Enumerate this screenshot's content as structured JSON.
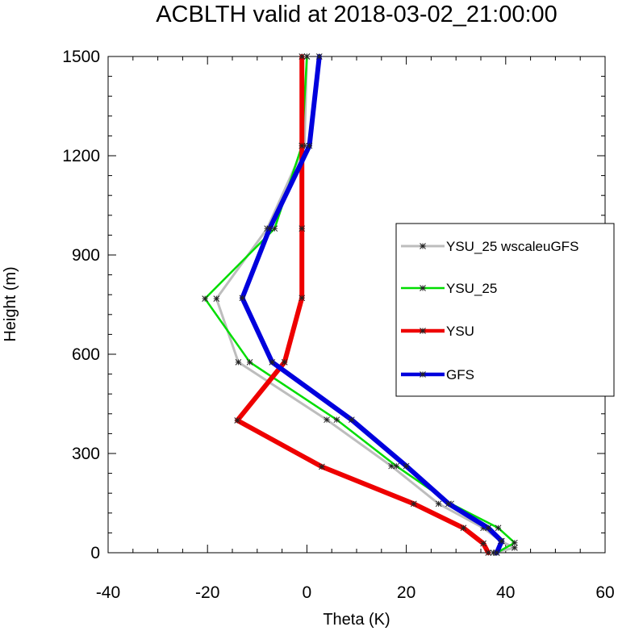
{
  "chart_data": {
    "type": "line",
    "title": "ACBLTH valid at 2018-03-02_21:00:00",
    "xlabel": "Theta (K)",
    "ylabel": "Height (m)",
    "xlim": [
      -40,
      60
    ],
    "ylim": [
      0,
      1500
    ],
    "x_ticks": [
      "-40",
      "-20",
      "0",
      "20",
      "40",
      "60"
    ],
    "y_ticks": [
      "0",
      "300",
      "600",
      "900",
      "1200",
      "1500"
    ],
    "legend_position": "right",
    "series": [
      {
        "name": "YSU_25 wscaleuGFS",
        "color": "#bdbdbd",
        "width": 3,
        "markers": true,
        "points": [
          [
            37.5,
            0
          ],
          [
            41.8,
            15
          ],
          [
            39,
            35
          ],
          [
            35.5,
            75
          ],
          [
            26.5,
            148
          ],
          [
            17,
            262
          ],
          [
            4,
            402
          ],
          [
            -13.8,
            576
          ],
          [
            -18.2,
            768
          ],
          [
            -8,
            980
          ],
          [
            -0.5,
            1230
          ],
          [
            0,
            1500
          ]
        ]
      },
      {
        "name": "YSU_25",
        "color": "#00dd00",
        "width": 2.5,
        "markers": true,
        "points": [
          [
            38.2,
            0
          ],
          [
            41.8,
            30
          ],
          [
            38.5,
            75
          ],
          [
            29,
            148
          ],
          [
            18,
            262
          ],
          [
            6,
            402
          ],
          [
            -11.5,
            576
          ],
          [
            -20.5,
            768
          ],
          [
            -6.5,
            980
          ],
          [
            -1,
            1230
          ],
          [
            0,
            1500
          ]
        ]
      },
      {
        "name": "YSU",
        "color": "#ee0000",
        "width": 6,
        "markers": true,
        "points": [
          [
            36.5,
            0
          ],
          [
            35.5,
            28
          ],
          [
            31.5,
            75
          ],
          [
            21.5,
            148
          ],
          [
            3,
            260
          ],
          [
            -14,
            400
          ],
          [
            -4.5,
            576
          ],
          [
            -1,
            770
          ],
          [
            -1,
            980
          ],
          [
            -1,
            1230
          ],
          [
            -1,
            1500
          ]
        ]
      },
      {
        "name": "GFS",
        "color": "#0000dd",
        "width": 6,
        "markers": true,
        "points": [
          [
            38.2,
            0
          ],
          [
            39.2,
            35
          ],
          [
            36.5,
            75
          ],
          [
            28.5,
            148
          ],
          [
            20,
            262
          ],
          [
            9,
            402
          ],
          [
            -7,
            576
          ],
          [
            -13,
            770
          ],
          [
            -7.5,
            980
          ],
          [
            0.5,
            1230
          ],
          [
            2.5,
            1500
          ]
        ]
      }
    ]
  }
}
